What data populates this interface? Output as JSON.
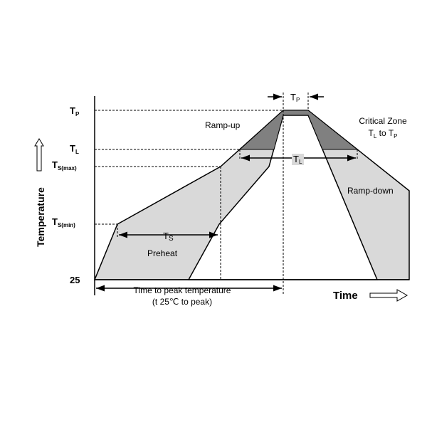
{
  "y_labels": [
    {
      "main": "T",
      "sub": "P"
    },
    {
      "main": "T",
      "sub": "L"
    },
    {
      "main": "T",
      "sub": "S(max)"
    },
    {
      "main": "T",
      "sub": "S(min)"
    },
    {
      "main": "25"
    }
  ],
  "y_axis_title": "Temperature",
  "x_axis_title": "Time",
  "regions": {
    "ramp_up": "Ramp-up",
    "ramp_down": "Ramp-down",
    "preheat": "Preheat",
    "critical_zone": "Critical Zone",
    "critical_range": {
      "a": "T",
      "a_sub": "L",
      "to": " to ",
      "b": "T",
      "b_sub": "P"
    }
  },
  "intervals": {
    "tp": {
      "main": "T",
      "sub": "P"
    },
    "tl": {
      "main": "T",
      "sub": "L"
    },
    "ts": {
      "main": "T",
      "sub": "S"
    }
  },
  "time_to_peak": [
    "Time to peak temperature",
    "(t 25℃ to peak)"
  ]
}
